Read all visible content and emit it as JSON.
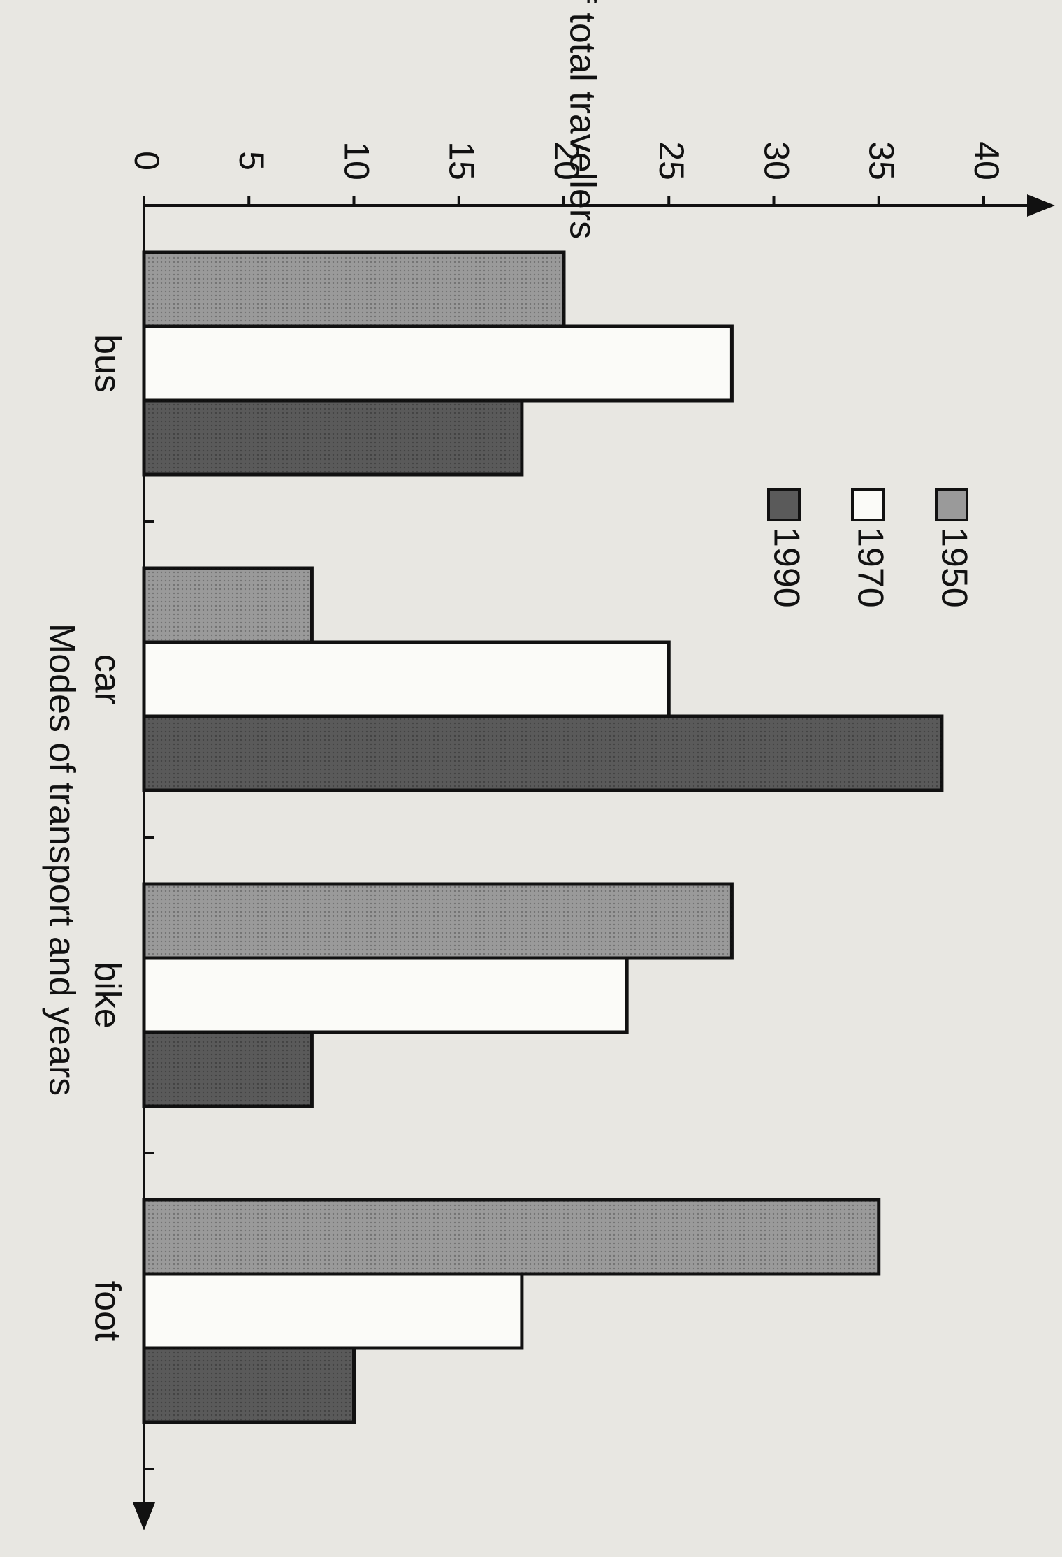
{
  "chart_data": {
    "type": "bar",
    "y_label": "% of total travellers",
    "x_label": "Modes of transport and years",
    "categories": [
      "bus",
      "car",
      "bike",
      "foot"
    ],
    "series": [
      {
        "name": "1950",
        "color": "#9a9a9a",
        "values": [
          20,
          8,
          28,
          35
        ]
      },
      {
        "name": "1970",
        "color": "#fbfbf8",
        "values": [
          28,
          25,
          23,
          18
        ]
      },
      {
        "name": "1990",
        "color": "#5a5a5a",
        "values": [
          18,
          38,
          8,
          10
        ]
      }
    ],
    "ylim": [
      0,
      40
    ],
    "yticks": [
      0,
      5,
      10,
      15,
      20,
      25,
      30,
      35,
      40
    ]
  }
}
